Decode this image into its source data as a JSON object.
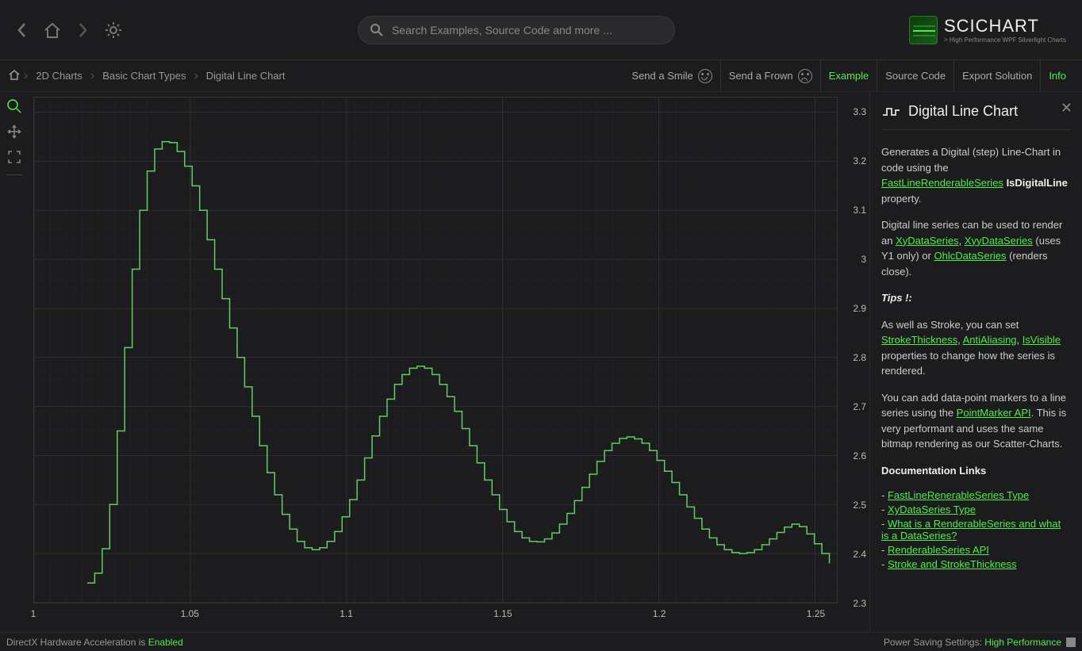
{
  "search": {
    "placeholder": "Search Examples, Source Code and more ..."
  },
  "logo": {
    "title": "SCICHART",
    "subtitle": "> High Performance WPF Silverlight Charts"
  },
  "breadcrumb": [
    "2D Charts",
    "Basic Chart Types",
    "Digital Line Chart"
  ],
  "subbar_right": {
    "send_smile": "Send a Smile",
    "send_frown": "Send a Frown",
    "example": "Example",
    "source_code": "Source Code",
    "export": "Export Solution",
    "info": "Info"
  },
  "chart": {
    "type": "digital-line",
    "line_color": "#5fce5f",
    "line_width": 1.5,
    "background_color": "#1c1c1e",
    "grid_major_color": "#2f2f31",
    "grid_minor_color": "#252527",
    "border_color": "#333333",
    "tick_label_color": "#bbbbbb",
    "tick_fontsize": 12,
    "xlim": [
      1.0,
      1.257
    ],
    "ylim": [
      2.3,
      3.33
    ],
    "xticks": [
      1,
      1.05,
      1.1,
      1.15,
      1.2,
      1.25
    ],
    "xtick_labels": [
      "1",
      "1.05",
      "1.1",
      "1.15",
      "1.2",
      "1.25"
    ],
    "yticks": [
      2.3,
      2.4,
      2.5,
      2.6,
      2.7,
      2.8,
      2.9,
      3.0,
      3.1,
      3.2,
      3.3
    ],
    "ytick_labels": [
      "2.3",
      "2.4",
      "2.5",
      "2.6",
      "2.7",
      "2.8",
      "2.9",
      "3",
      "3.1",
      "3.2",
      "3.3"
    ],
    "data": {
      "x_start": 1.017,
      "x_step": 0.0024,
      "y": [
        2.34,
        2.36,
        2.41,
        2.5,
        2.65,
        2.82,
        2.98,
        3.1,
        3.18,
        3.225,
        3.24,
        3.238,
        3.22,
        3.19,
        3.15,
        3.1,
        3.04,
        2.98,
        2.92,
        2.86,
        2.8,
        2.74,
        2.68,
        2.62,
        2.565,
        2.52,
        2.48,
        2.45,
        2.425,
        2.412,
        2.408,
        2.412,
        2.425,
        2.445,
        2.475,
        2.51,
        2.55,
        2.595,
        2.64,
        2.68,
        2.715,
        2.745,
        2.765,
        2.778,
        2.782,
        2.778,
        2.765,
        2.745,
        2.72,
        2.69,
        2.655,
        2.62,
        2.585,
        2.55,
        2.52,
        2.49,
        2.465,
        2.445,
        2.432,
        2.425,
        2.424,
        2.43,
        2.442,
        2.46,
        2.482,
        2.508,
        2.535,
        2.562,
        2.588,
        2.61,
        2.625,
        2.635,
        2.638,
        2.634,
        2.625,
        2.61,
        2.59,
        2.568,
        2.545,
        2.52,
        2.495,
        2.472,
        2.45,
        2.432,
        2.418,
        2.408,
        2.402,
        2.4,
        2.402,
        2.408,
        2.418,
        2.43,
        2.443,
        2.454,
        2.46,
        2.455,
        2.44,
        2.42,
        2.4,
        2.38
      ]
    }
  },
  "info": {
    "title": "Digital Line Chart",
    "p1_a": "Generates a Digital (step) Line-Chart in code using the ",
    "p1_link1": "FastLineRenderableSeries",
    "p1_b": " ",
    "p1_bold": "IsDigitalLine",
    "p1_c": " property.",
    "p2_a": "Digital line series can be used to render an ",
    "p2_link1": "XyDataSeries",
    "p2_b": ", ",
    "p2_link2": "XyyDataSeries",
    "p2_c": " (uses Y1 only) or ",
    "p2_link3": "OhlcDataSeries",
    "p2_d": " (renders close).",
    "tips_label": "Tips !:",
    "p3_a": "As well as Stroke, you can set ",
    "p3_link1": "StrokeThickness",
    "p3_b": ", ",
    "p3_link2": "AntiAliasing",
    "p3_c": ", ",
    "p3_link3": "IsVisible",
    "p3_d": " properties to change how the series is rendered.",
    "p4_a": "You can add data-point markers to a line series using the ",
    "p4_link1": "PointMarker API",
    "p4_b": ". This is very performant and uses the same bitmap rendering as our Scatter-Charts.",
    "doclinks_title": "Documentation Links",
    "doclinks": [
      "FastLineRenerableSeries Type",
      "XyDataSeries Type",
      "What is a RenderableSeries and what is a DataSeries?",
      "RenderableSeries API",
      "Stroke and StrokeThickness"
    ]
  },
  "status": {
    "left_a": "DirectX Hardware Acceleration is ",
    "left_b": "Enabled",
    "right_a": "Power Saving Settings: ",
    "right_b": "High Performance"
  }
}
